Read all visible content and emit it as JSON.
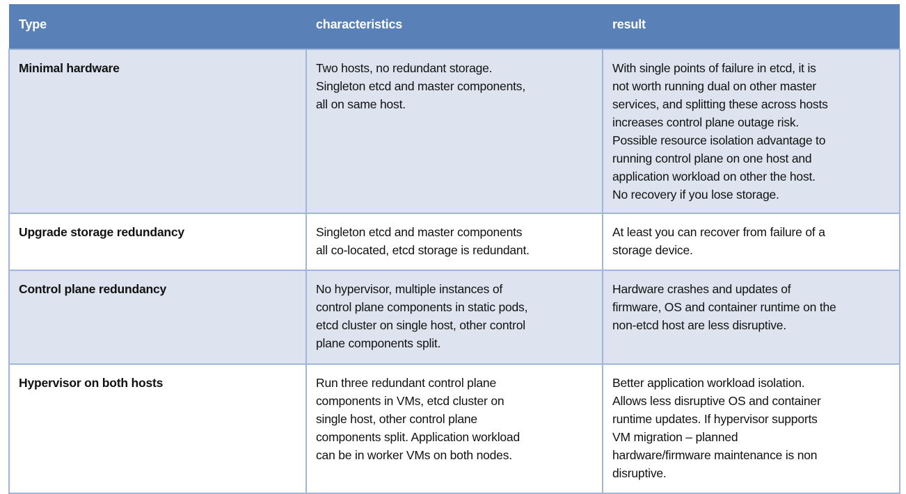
{
  "table": {
    "headers": [
      "Type",
      "characteristics",
      "result"
    ],
    "rows": [
      {
        "type": "Minimal hardware",
        "characteristics": "Two hosts, no redundant storage.\nSingleton etcd and master components,\nall on same host.",
        "result": "With single points of failure in etcd, it is\nnot worth running dual on other master\nservices, and splitting these across hosts\nincreases control plane outage risk.\nPossible resource isolation advantage to\nrunning control plane on one host and\napplication workload on other the host.\nNo recovery if you lose storage."
      },
      {
        "type": "Upgrade storage redundancy",
        "characteristics": "Singleton etcd and master components\nall co-located, etcd storage is redundant.",
        "result": "At least you can recover from failure of a\nstorage device."
      },
      {
        "type": "Control plane redundancy",
        "characteristics": "No hypervisor, multiple instances of\ncontrol plane components in static pods,\netcd cluster on single host, other control\nplane components split.",
        "result": "Hardware crashes and updates of\nfirmware, OS and container runtime on the\nnon-etcd host are less disruptive."
      },
      {
        "type": "Hypervisor on both hosts",
        "characteristics": "Run three redundant control plane\ncomponents in VMs, etcd cluster on\nsingle host, other control plane\ncomponents split. Application workload\ncan be in worker VMs on both nodes.",
        "result": "Better application workload isolation.\nAllows less disruptive OS and container\nruntime updates. If hypervisor supports\nVM migration – planned\nhardware/firmware maintenance is non\ndisruptive."
      }
    ]
  },
  "colors": {
    "header_bg": "#5a80b8",
    "shaded_row_bg": "#dde4ef",
    "border": "#9fb6d8"
  }
}
